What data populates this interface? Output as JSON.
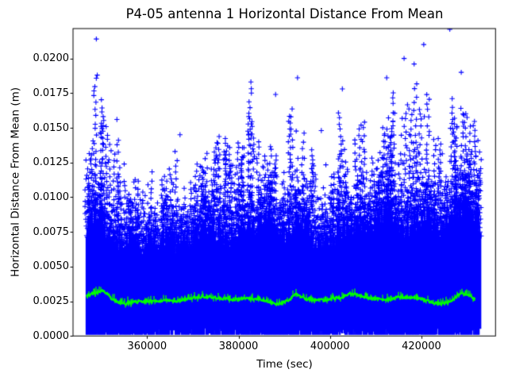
{
  "chart_data": {
    "type": "scatter",
    "title": "P4-05 antenna 1 Horizontal Distance From Mean",
    "xlabel": "Time (sec)",
    "ylabel": "Horizontal Distance From Mean (m)",
    "xlim": [
      343800,
      436200
    ],
    "ylim": [
      0.0,
      0.02215
    ],
    "xticks": [
      360000,
      380000,
      400000,
      420000
    ],
    "xtick_labels": [
      "360000",
      "380000",
      "400000",
      "420000"
    ],
    "yticks": [
      0.0,
      0.0025,
      0.005,
      0.0075,
      0.01,
      0.0125,
      0.015,
      0.0175,
      0.02
    ],
    "ytick_labels": [
      "0.0000",
      "0.0025",
      "0.0050",
      "0.0075",
      "0.0100",
      "0.0125",
      "0.0150",
      "0.0175",
      "0.0200"
    ],
    "grid": false,
    "legend": false,
    "samples": {
      "t": [
        346700,
        348600,
        350500,
        352600,
        354700,
        356500,
        358600,
        360700,
        362600,
        364600,
        366500,
        368600,
        370700,
        372600,
        374600,
        376500,
        378600,
        380700,
        382600,
        384600,
        386500,
        388600,
        390700,
        392600,
        394600,
        396500,
        398600,
        400700,
        402600,
        404600,
        406500,
        408600,
        410600,
        412500,
        414600,
        416500,
        418600,
        420600,
        422500,
        424600,
        426500,
        428600,
        430500,
        432900
      ],
      "dense_top": [
        0.009,
        0.0125,
        0.0108,
        0.0085,
        0.0082,
        0.0095,
        0.0086,
        0.009,
        0.0085,
        0.01,
        0.0086,
        0.009,
        0.0096,
        0.0104,
        0.01,
        0.0095,
        0.0086,
        0.01,
        0.0108,
        0.0104,
        0.0112,
        0.0095,
        0.01,
        0.0105,
        0.0108,
        0.009,
        0.0086,
        0.009,
        0.0104,
        0.01,
        0.0104,
        0.01,
        0.0108,
        0.0118,
        0.0104,
        0.01,
        0.0104,
        0.0114,
        0.0108,
        0.01,
        0.011,
        0.0128,
        0.0118,
        0.0108
      ],
      "spike_max": [
        0.012,
        0.0214,
        0.0185,
        0.0145,
        0.0156,
        0.0132,
        0.012,
        0.0125,
        0.011,
        0.0122,
        0.0145,
        0.0115,
        0.0125,
        0.0133,
        0.016,
        0.0165,
        0.0147,
        0.0157,
        0.0183,
        0.0164,
        0.0155,
        0.0174,
        0.0168,
        0.0186,
        0.0155,
        0.0125,
        0.0148,
        0.0125,
        0.0177,
        0.016,
        0.0163,
        0.0147,
        0.0155,
        0.0186,
        0.0177,
        0.0201,
        0.0196,
        0.021,
        0.017,
        0.015,
        0.0221,
        0.019,
        0.0168,
        0.016
      ],
      "green_mean": [
        0.0029,
        0.0031,
        0.0033,
        0.0026,
        0.0023,
        0.0024,
        0.0025,
        0.0025,
        0.0025,
        0.0026,
        0.0025,
        0.0027,
        0.0028,
        0.0028,
        0.0028,
        0.0027,
        0.0026,
        0.0027,
        0.0027,
        0.0027,
        0.0025,
        0.0023,
        0.0025,
        0.003,
        0.0027,
        0.0026,
        0.0026,
        0.0027,
        0.0028,
        0.0031,
        0.0029,
        0.0027,
        0.0027,
        0.0026,
        0.0028,
        0.0028,
        0.0028,
        0.0026,
        0.0024,
        0.0023,
        0.0025,
        0.0031,
        0.0029,
        0.0025
      ]
    },
    "series": [
      {
        "name": "horizontal-distance-scatter",
        "type": "scatter",
        "marker": "+",
        "color": "#0000FF",
        "t_range": [
          346700,
          432900
        ],
        "outliers": [
          [
            348900,
            0.0214
          ],
          [
            349100,
            0.0188
          ],
          [
            353400,
            0.0156
          ],
          [
            367200,
            0.0145
          ],
          [
            382700,
            0.0183
          ],
          [
            388100,
            0.0174
          ],
          [
            392900,
            0.0186
          ],
          [
            398100,
            0.0148
          ],
          [
            402700,
            0.0178
          ],
          [
            412400,
            0.0186
          ],
          [
            416200,
            0.02
          ],
          [
            418400,
            0.0196
          ],
          [
            420500,
            0.021
          ],
          [
            426200,
            0.0221
          ],
          [
            428700,
            0.019
          ]
        ]
      },
      {
        "name": "running-mean-line",
        "type": "line",
        "color": "#00FF00",
        "t_range": [
          346800,
          431800
        ]
      }
    ]
  },
  "colors": {
    "marker_blue": "#0000FF",
    "line_green": "#00FF00",
    "axis": "#000000",
    "background": "#FFFFFF"
  }
}
